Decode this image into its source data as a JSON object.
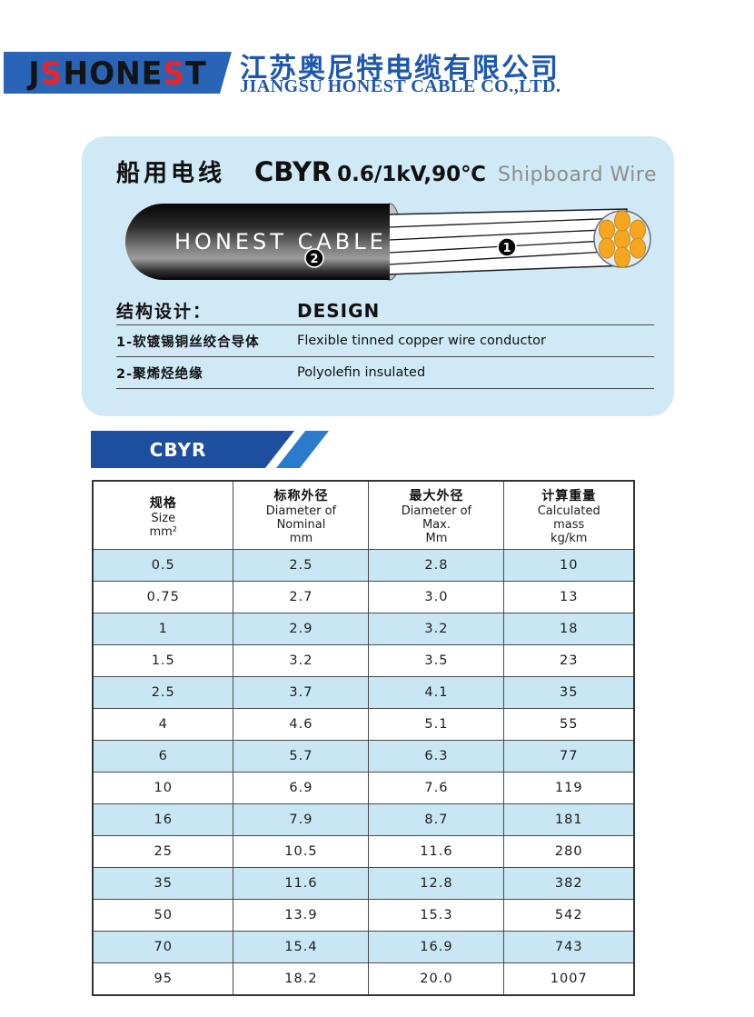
{
  "brand": {
    "banner_color": "#2a64b6",
    "logo_letters": [
      {
        "ch": "J",
        "color": "#141414"
      },
      {
        "ch": "S",
        "color": "#e8252b"
      },
      {
        "ch": "H",
        "color": "#141414"
      },
      {
        "ch": "O",
        "color": "#141414"
      },
      {
        "ch": "N",
        "color": "#141414"
      },
      {
        "ch": "E",
        "color": "#141414"
      },
      {
        "ch": "S",
        "color": "#e8252b"
      },
      {
        "ch": "T",
        "color": "#141414"
      }
    ],
    "company_cn": "江苏奥尼特电缆有限公司",
    "company_en": "JIANGSU HONEST CABLE CO.,LTD.",
    "text_color": "#1d57ae"
  },
  "product": {
    "title_cn": "船用电线",
    "model": "CBYR",
    "rating": "0.6/1kV,90℃",
    "title_en": "Shipboard Wire",
    "cable_print": "HONEST CABLE",
    "marker_conductor": "1",
    "marker_insulation": "2",
    "design": {
      "heading_cn": "结构设计：",
      "heading_en": "DESIGN",
      "items": [
        {
          "cn": "1-软镀锡铜丝绞合导体",
          "en": "Flexible tinned copper wire conductor"
        },
        {
          "cn": "2-聚烯烃绝缘",
          "en": "Polyolefin insulated"
        }
      ]
    }
  },
  "section_tab": {
    "label": "CBYR",
    "dark_color": "#1d4f9e",
    "light_color": "#2a7ccb"
  },
  "spec_table": {
    "columns": [
      {
        "cn": "规格",
        "en": [
          "Size",
          "mm²"
        ]
      },
      {
        "cn": "标称外径",
        "en": [
          "Diameter of",
          "Nominal",
          "mm"
        ]
      },
      {
        "cn": "最大外径",
        "en": [
          "Diameter of",
          "Max.",
          "Mm"
        ]
      },
      {
        "cn": "计算重量",
        "en": [
          "Calculated",
          "mass",
          "kg/km"
        ]
      }
    ],
    "rows": [
      [
        "0.5",
        "2.5",
        "2.8",
        "10"
      ],
      [
        "0.75",
        "2.7",
        "3.0",
        "13"
      ],
      [
        "1",
        "2.9",
        "3.2",
        "18"
      ],
      [
        "1.5",
        "3.2",
        "3.5",
        "23"
      ],
      [
        "2.5",
        "3.7",
        "4.1",
        "35"
      ],
      [
        "4",
        "4.6",
        "5.1",
        "55"
      ],
      [
        "6",
        "5.7",
        "6.3",
        "77"
      ],
      [
        "10",
        "6.9",
        "7.6",
        "119"
      ],
      [
        "16",
        "7.9",
        "8.7",
        "181"
      ],
      [
        "25",
        "10.5",
        "11.6",
        "280"
      ],
      [
        "35",
        "11.6",
        "12.8",
        "382"
      ],
      [
        "50",
        "13.9",
        "15.3",
        "542"
      ],
      [
        "70",
        "15.4",
        "16.9",
        "743"
      ],
      [
        "95",
        "18.2",
        "20.0",
        "1007"
      ]
    ],
    "row_alt_color": "#c8e6f4"
  },
  "colors": {
    "card_bg": "#cfe9f6",
    "strand_orange": "#f6a71f",
    "strand_stroke": "#c8871a"
  }
}
